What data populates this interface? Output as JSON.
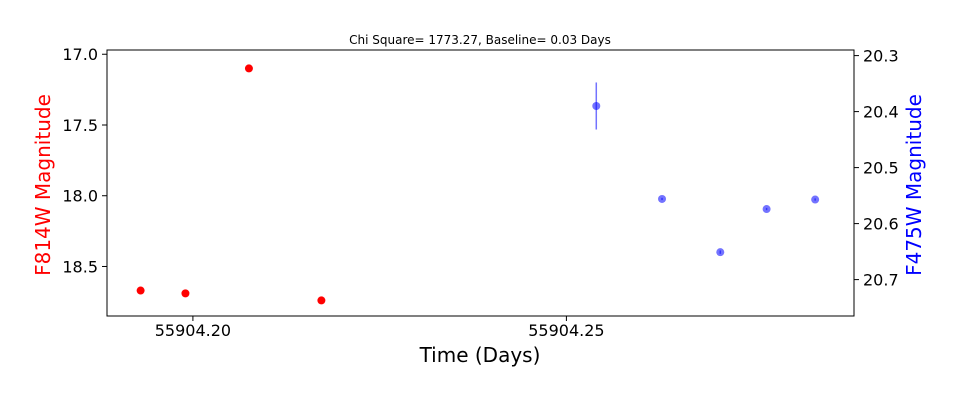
{
  "chart_data": {
    "type": "scatter",
    "title": "Chi Square= 1773.27, Baseline= 0.03 Days",
    "xlabel": "Time (Days)",
    "ylabel_left": "F814W Magnitude",
    "ylabel_right": "F475W Magnitude",
    "xlim": [
      55904.1885,
      55904.2885
    ],
    "x_ticks": [
      55904.2,
      55904.25
    ],
    "x_tick_labels": [
      "55904.20",
      "55904.25"
    ],
    "ylim_left": [
      18.85,
      16.97
    ],
    "y_ticks_left": [
      17.0,
      17.5,
      18.0,
      18.5
    ],
    "y_tick_labels_left": [
      "17.0",
      "17.5",
      "18.0",
      "18.5"
    ],
    "ylim_right": [
      20.765,
      20.29
    ],
    "y_ticks_right": [
      20.3,
      20.4,
      20.5,
      20.6,
      20.7
    ],
    "y_tick_labels_right": [
      "20.3",
      "20.4",
      "20.5",
      "20.6",
      "20.7"
    ],
    "grid": false,
    "series": [
      {
        "axis": "left",
        "color": "#ff0000",
        "points": [
          {
            "x": 55904.193,
            "y": 18.67,
            "err": 0.0
          },
          {
            "x": 55904.199,
            "y": 18.69,
            "err": 0.0
          },
          {
            "x": 55904.2075,
            "y": 17.1,
            "err": 0.0
          },
          {
            "x": 55904.2172,
            "y": 18.74,
            "err": 0.0
          }
        ]
      },
      {
        "axis": "right",
        "color": "#0000ff",
        "points": [
          {
            "x": 55904.254,
            "y": 20.39,
            "err": 0.042
          },
          {
            "x": 55904.2628,
            "y": 20.556,
            "err": 0.002
          },
          {
            "x": 55904.2706,
            "y": 20.651,
            "err": 0.003
          },
          {
            "x": 55904.2768,
            "y": 20.574,
            "err": 0.002
          },
          {
            "x": 55904.2833,
            "y": 20.557,
            "err": 0.002
          }
        ]
      }
    ]
  }
}
